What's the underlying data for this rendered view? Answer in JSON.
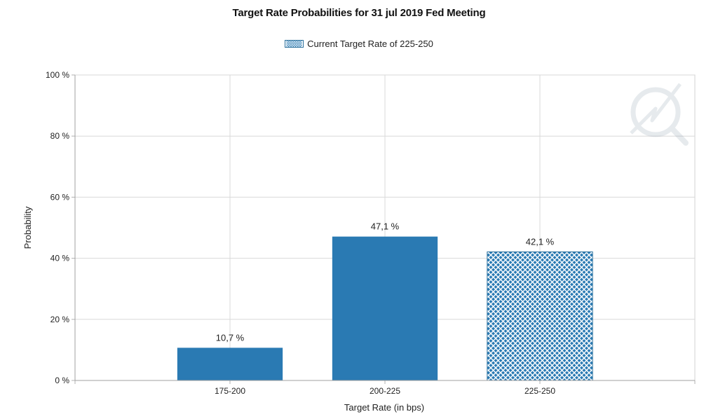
{
  "chart_data": {
    "type": "bar",
    "title": "Target Rate Probabilities for 31 jul 2019 Fed Meeting",
    "xlabel": "Target Rate (in bps)",
    "ylabel": "Probability",
    "categories": [
      "175-200",
      "200-225",
      "225-250"
    ],
    "values": [
      10.7,
      47.1,
      42.1
    ],
    "data_labels": [
      "10,7 %",
      "47,1 %",
      "42,1 %"
    ],
    "highlighted": [
      false,
      false,
      true
    ],
    "ylim": [
      0,
      100
    ],
    "yticks": [
      0,
      20,
      40,
      60,
      80,
      100
    ],
    "ytick_labels": [
      "0 %",
      "20 %",
      "40 %",
      "60 %",
      "80 %",
      "100 %"
    ],
    "legend": {
      "label": "Current Target Rate of 225-250",
      "placement": "top-center"
    },
    "grid": true,
    "colors": {
      "bar": "#2a7ab3",
      "hatch_fill": "#ffffff",
      "grid": "#d9d9d9",
      "axis": "#b0b0b0"
    }
  }
}
